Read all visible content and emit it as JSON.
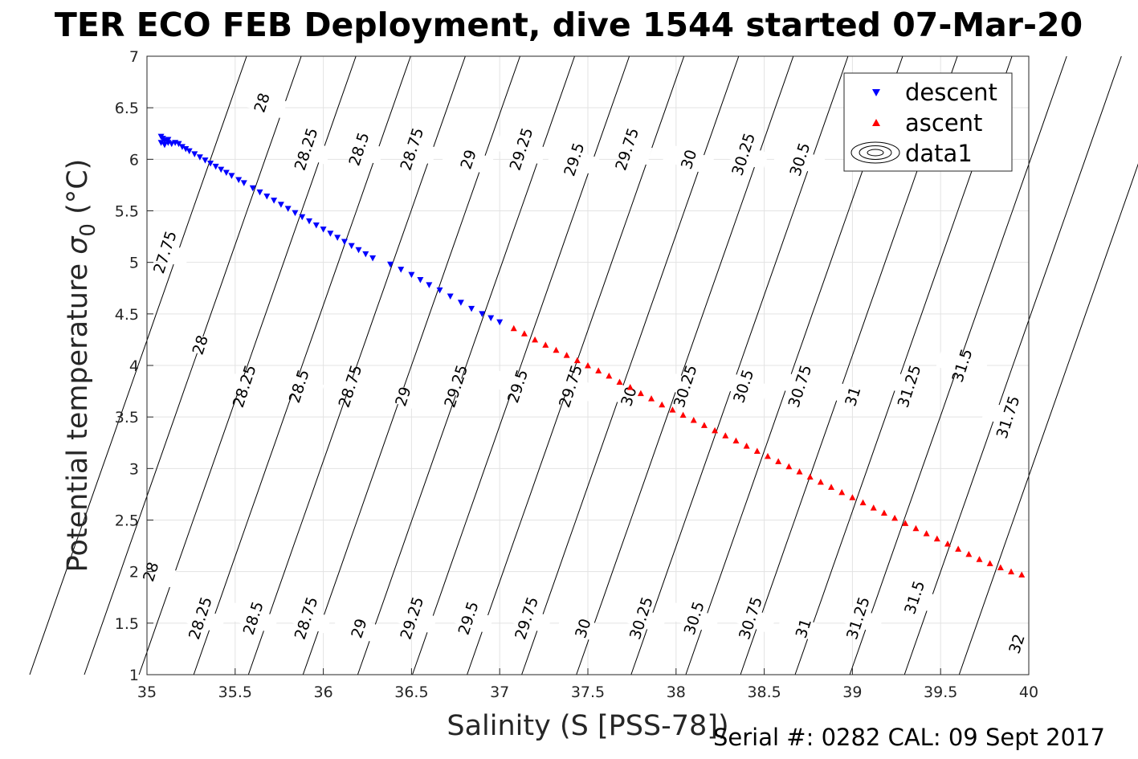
{
  "figure": {
    "title": "TER ECO FEB Deployment, dive 1544 started 07-Mar-20",
    "serial_note": "Serial #: 0282  CAL: 09 Sept 2017"
  },
  "chart_data": {
    "type": "scatter",
    "title": "TER ECO FEB Deployment, dive 1544 started 07-Mar-20",
    "xlabel": "Salinity (S [PSS-78])",
    "ylabel_main": "Potential temperature ",
    "ylabel_sigma": "σ",
    "ylabel_sub": "0",
    "ylabel_unit": " (°C)",
    "xlim": [
      35,
      40
    ],
    "ylim": [
      1,
      7
    ],
    "xticks": [
      "35",
      "35.5",
      "36",
      "36.5",
      "37",
      "37.5",
      "38",
      "38.5",
      "39",
      "39.5",
      "40"
    ],
    "yticks": [
      "1",
      "1.5",
      "2",
      "2.5",
      "3",
      "3.5",
      "4",
      "4.5",
      "5",
      "5.5",
      "6",
      "6.5",
      "7"
    ],
    "grid": true,
    "legend_position": "top-right",
    "legend": [
      "descent",
      "ascent",
      "data1"
    ],
    "colors": {
      "descent": "#0000ff",
      "ascent": "#ff0000",
      "contour": "#000000",
      "grid": "#e3e3e3"
    },
    "contours": {
      "name": "data1",
      "levels": [
        27.75,
        28,
        28.25,
        28.5,
        28.75,
        29,
        29.25,
        29.5,
        29.75,
        30,
        30.25,
        30.5,
        30.75,
        31,
        31.25,
        31.5,
        31.75,
        32
      ],
      "labels": [
        {
          "text": "28",
          "s": 35.65,
          "t": 6.55
        },
        {
          "text": "28.25",
          "s": 35.9,
          "t": 6.1
        },
        {
          "text": "28.5",
          "s": 36.2,
          "t": 6.1
        },
        {
          "text": "28.75",
          "s": 36.5,
          "t": 6.1
        },
        {
          "text": "29",
          "s": 36.82,
          "t": 6.0
        },
        {
          "text": "29.25",
          "s": 37.12,
          "t": 6.1
        },
        {
          "text": "29.5",
          "s": 37.42,
          "t": 6.0
        },
        {
          "text": "29.75",
          "s": 37.72,
          "t": 6.1
        },
        {
          "text": "30",
          "s": 38.07,
          "t": 6.0
        },
        {
          "text": "30.25",
          "s": 38.38,
          "t": 6.05
        },
        {
          "text": "30.5",
          "s": 38.7,
          "t": 6.0
        },
        {
          "text": "27.75",
          "s": 35.1,
          "t": 5.1
        },
        {
          "text": "28",
          "s": 35.3,
          "t": 4.2
        },
        {
          "text": "28.25",
          "s": 35.55,
          "t": 3.8
        },
        {
          "text": "28.5",
          "s": 35.86,
          "t": 3.8
        },
        {
          "text": "28.75",
          "s": 36.15,
          "t": 3.8
        },
        {
          "text": "29",
          "s": 36.45,
          "t": 3.7
        },
        {
          "text": "29.25",
          "s": 36.75,
          "t": 3.8
        },
        {
          "text": "29.5",
          "s": 37.1,
          "t": 3.8
        },
        {
          "text": "29.75",
          "s": 37.4,
          "t": 3.8
        },
        {
          "text": "30",
          "s": 37.73,
          "t": 3.7
        },
        {
          "text": "30.25",
          "s": 38.05,
          "t": 3.8
        },
        {
          "text": "30.5",
          "s": 38.38,
          "t": 3.8
        },
        {
          "text": "30.75",
          "s": 38.7,
          "t": 3.8
        },
        {
          "text": "31",
          "s": 39.0,
          "t": 3.7
        },
        {
          "text": "31.25",
          "s": 39.32,
          "t": 3.8
        },
        {
          "text": "31.5",
          "s": 39.62,
          "t": 4.0
        },
        {
          "text": "31.75",
          "s": 39.88,
          "t": 3.5
        },
        {
          "text": "28",
          "s": 35.02,
          "t": 2.0
        },
        {
          "text": "28.25",
          "s": 35.3,
          "t": 1.55
        },
        {
          "text": "28.5",
          "s": 35.6,
          "t": 1.55
        },
        {
          "text": "28.75",
          "s": 35.9,
          "t": 1.55
        },
        {
          "text": "29",
          "s": 36.2,
          "t": 1.45
        },
        {
          "text": "29.25",
          "s": 36.5,
          "t": 1.55
        },
        {
          "text": "29.5",
          "s": 36.82,
          "t": 1.55
        },
        {
          "text": "29.75",
          "s": 37.15,
          "t": 1.55
        },
        {
          "text": "30",
          "s": 37.47,
          "t": 1.45
        },
        {
          "text": "30.25",
          "s": 37.8,
          "t": 1.55
        },
        {
          "text": "30.5",
          "s": 38.1,
          "t": 1.55
        },
        {
          "text": "30.75",
          "s": 38.42,
          "t": 1.55
        },
        {
          "text": "31",
          "s": 38.72,
          "t": 1.45
        },
        {
          "text": "31.25",
          "s": 39.03,
          "t": 1.55
        },
        {
          "text": "31.5",
          "s": 39.35,
          "t": 1.75
        },
        {
          "text": "32",
          "s": 39.93,
          "t": 1.3
        }
      ]
    },
    "series": [
      {
        "name": "descent",
        "marker": "triangle-down",
        "points": [
          {
            "s": 35.08,
            "t": 6.22
          },
          {
            "s": 35.09,
            "t": 6.2
          },
          {
            "s": 35.1,
            "t": 6.18
          },
          {
            "s": 35.08,
            "t": 6.16
          },
          {
            "s": 35.1,
            "t": 6.14
          },
          {
            "s": 35.12,
            "t": 6.16
          },
          {
            "s": 35.14,
            "t": 6.15
          },
          {
            "s": 35.16,
            "t": 6.16
          },
          {
            "s": 35.18,
            "t": 6.15
          },
          {
            "s": 35.12,
            "t": 6.19
          },
          {
            "s": 35.2,
            "t": 6.12
          },
          {
            "s": 35.22,
            "t": 6.1
          },
          {
            "s": 35.24,
            "t": 6.08
          },
          {
            "s": 35.27,
            "t": 6.05
          },
          {
            "s": 35.3,
            "t": 6.02
          },
          {
            "s": 35.33,
            "t": 5.99
          },
          {
            "s": 35.36,
            "t": 5.96
          },
          {
            "s": 35.39,
            "t": 5.93
          },
          {
            "s": 35.42,
            "t": 5.9
          },
          {
            "s": 35.45,
            "t": 5.87
          },
          {
            "s": 35.48,
            "t": 5.84
          },
          {
            "s": 35.52,
            "t": 5.8
          },
          {
            "s": 35.55,
            "t": 5.77
          },
          {
            "s": 35.6,
            "t": 5.72
          },
          {
            "s": 35.64,
            "t": 5.68
          },
          {
            "s": 35.68,
            "t": 5.64
          },
          {
            "s": 35.72,
            "t": 5.6
          },
          {
            "s": 35.76,
            "t": 5.56
          },
          {
            "s": 35.8,
            "t": 5.52
          },
          {
            "s": 35.84,
            "t": 5.48
          },
          {
            "s": 35.88,
            "t": 5.44
          },
          {
            "s": 35.92,
            "t": 5.4
          },
          {
            "s": 35.96,
            "t": 5.36
          },
          {
            "s": 36.0,
            "t": 5.32
          },
          {
            "s": 36.04,
            "t": 5.28
          },
          {
            "s": 36.08,
            "t": 5.24
          },
          {
            "s": 36.12,
            "t": 5.2
          },
          {
            "s": 36.16,
            "t": 5.16
          },
          {
            "s": 36.2,
            "t": 5.12
          },
          {
            "s": 36.24,
            "t": 5.08
          },
          {
            "s": 36.28,
            "t": 5.04
          },
          {
            "s": 36.38,
            "t": 4.98
          },
          {
            "s": 36.44,
            "t": 4.93
          },
          {
            "s": 36.5,
            "t": 4.88
          },
          {
            "s": 36.55,
            "t": 4.83
          },
          {
            "s": 36.6,
            "t": 4.78
          },
          {
            "s": 36.66,
            "t": 4.73
          },
          {
            "s": 36.72,
            "t": 4.67
          },
          {
            "s": 36.78,
            "t": 4.61
          },
          {
            "s": 36.84,
            "t": 4.55
          },
          {
            "s": 36.9,
            "t": 4.5
          },
          {
            "s": 36.95,
            "t": 4.46
          },
          {
            "s": 37.0,
            "t": 4.42
          }
        ]
      },
      {
        "name": "ascent",
        "marker": "triangle-up",
        "points": [
          {
            "s": 37.08,
            "t": 4.36
          },
          {
            "s": 37.14,
            "t": 4.31
          },
          {
            "s": 37.2,
            "t": 4.25
          },
          {
            "s": 37.26,
            "t": 4.2
          },
          {
            "s": 37.32,
            "t": 4.15
          },
          {
            "s": 37.38,
            "t": 4.1
          },
          {
            "s": 37.44,
            "t": 4.05
          },
          {
            "s": 37.5,
            "t": 4.0
          },
          {
            "s": 37.56,
            "t": 3.95
          },
          {
            "s": 37.62,
            "t": 3.9
          },
          {
            "s": 37.68,
            "t": 3.84
          },
          {
            "s": 37.74,
            "t": 3.79
          },
          {
            "s": 37.8,
            "t": 3.73
          },
          {
            "s": 37.86,
            "t": 3.68
          },
          {
            "s": 37.92,
            "t": 3.62
          },
          {
            "s": 37.98,
            "t": 3.57
          },
          {
            "s": 38.04,
            "t": 3.52
          },
          {
            "s": 38.1,
            "t": 3.47
          },
          {
            "s": 38.16,
            "t": 3.42
          },
          {
            "s": 38.22,
            "t": 3.37
          },
          {
            "s": 38.28,
            "t": 3.32
          },
          {
            "s": 38.34,
            "t": 3.27
          },
          {
            "s": 38.4,
            "t": 3.22
          },
          {
            "s": 38.46,
            "t": 3.17
          },
          {
            "s": 38.52,
            "t": 3.12
          },
          {
            "s": 38.58,
            "t": 3.07
          },
          {
            "s": 38.64,
            "t": 3.02
          },
          {
            "s": 38.7,
            "t": 2.97
          },
          {
            "s": 38.76,
            "t": 2.92
          },
          {
            "s": 38.82,
            "t": 2.87
          },
          {
            "s": 38.88,
            "t": 2.82
          },
          {
            "s": 38.94,
            "t": 2.77
          },
          {
            "s": 39.0,
            "t": 2.72
          },
          {
            "s": 39.06,
            "t": 2.67
          },
          {
            "s": 39.12,
            "t": 2.62
          },
          {
            "s": 39.18,
            "t": 2.57
          },
          {
            "s": 39.24,
            "t": 2.52
          },
          {
            "s": 39.3,
            "t": 2.47
          },
          {
            "s": 39.36,
            "t": 2.42
          },
          {
            "s": 39.42,
            "t": 2.37
          },
          {
            "s": 39.48,
            "t": 2.32
          },
          {
            "s": 39.54,
            "t": 2.27
          },
          {
            "s": 39.6,
            "t": 2.22
          },
          {
            "s": 39.66,
            "t": 2.17
          },
          {
            "s": 39.72,
            "t": 2.12
          },
          {
            "s": 39.78,
            "t": 2.08
          },
          {
            "s": 39.84,
            "t": 2.04
          },
          {
            "s": 39.9,
            "t": 2.0
          },
          {
            "s": 39.96,
            "t": 1.97
          }
        ]
      }
    ]
  }
}
